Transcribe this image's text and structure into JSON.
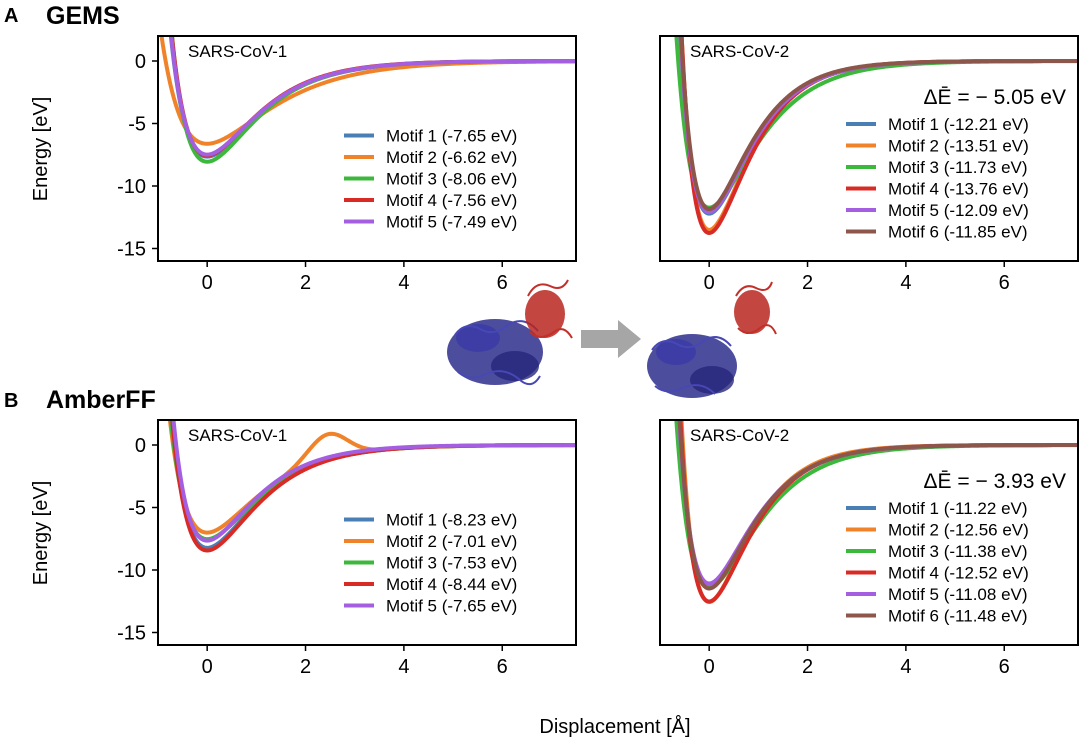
{
  "figure": {
    "xlabel_shared": "Displacement [Å]",
    "arrow_color": "#a6a6a6"
  },
  "rows": [
    {
      "letter": "A",
      "title": "GEMS",
      "ylabel": "Energy [eV]"
    },
    {
      "letter": "B",
      "title": "AmberFF",
      "ylabel": "Energy [eV]"
    }
  ],
  "colors": {
    "Motif 1": "#4a7fb5",
    "Motif 2": "#f0832a",
    "Motif 3": "#3cb83c",
    "Motif 4": "#d92b26",
    "Motif 5": "#a45fe0",
    "Motif 6": "#8c564b"
  },
  "chart_data": [
    {
      "id": "gems-cov1",
      "type": "line",
      "title": "SARS-CoV-1",
      "annotation": "",
      "xlim": [
        -1,
        7.5
      ],
      "ylim": [
        -16,
        2
      ],
      "xticks": [
        0,
        2,
        4,
        6
      ],
      "yticks": [
        0,
        -5,
        -10,
        -15
      ],
      "xlabel": "",
      "ylabel": "Energy [eV]",
      "legend": "lower-right",
      "series": [
        {
          "name": "Motif 1",
          "label": "Motif 1 (-7.65 eV)",
          "min": -7.65,
          "width": 1.02
        },
        {
          "name": "Motif 2",
          "label": "Motif 2 (-6.62 eV)",
          "min": -6.62,
          "width": 0.82
        },
        {
          "name": "Motif 3",
          "label": "Motif 3 (-8.06 eV)",
          "min": -8.06,
          "width": 1.05
        },
        {
          "name": "Motif 4",
          "label": "Motif 4 (-7.56 eV)",
          "min": -7.56,
          "width": 1.05
        },
        {
          "name": "Motif 5",
          "label": "Motif 5 (-7.49 eV)",
          "min": -7.49,
          "width": 1.03
        }
      ]
    },
    {
      "id": "gems-cov2",
      "type": "line",
      "title": "SARS-CoV-2",
      "annotation": "ΔĒ = − 5.05 eV",
      "xlim": [
        -1,
        7.5
      ],
      "ylim": [
        -16,
        2
      ],
      "xticks": [
        0,
        2,
        4,
        6
      ],
      "yticks": [],
      "xlabel": "",
      "ylabel": "",
      "legend": "lower-right",
      "series": [
        {
          "name": "Motif 1",
          "label": "Motif 1 (-12.21 eV)",
          "min": -12.21,
          "width": 1.25
        },
        {
          "name": "Motif 2",
          "label": "Motif 2 (-13.51 eV)",
          "min": -13.51,
          "width": 1.3
        },
        {
          "name": "Motif 3",
          "label": "Motif 3 (-11.73 eV)",
          "min": -11.73,
          "width": 1.1
        },
        {
          "name": "Motif 4",
          "label": "Motif 4 (-13.76 eV)",
          "min": -13.76,
          "width": 1.3
        },
        {
          "name": "Motif 5",
          "label": "Motif 5 (-12.09 eV)",
          "min": -12.09,
          "width": 1.25
        },
        {
          "name": "Motif 6",
          "label": "Motif 6 (-11.85 eV)",
          "min": -11.85,
          "width": 1.28
        }
      ]
    },
    {
      "id": "amber-cov1",
      "type": "line",
      "title": "SARS-CoV-1",
      "annotation": "",
      "xlim": [
        -1,
        7.5
      ],
      "ylim": [
        -16,
        2
      ],
      "xticks": [
        0,
        2,
        4,
        6
      ],
      "yticks": [
        0,
        -5,
        -10,
        -15
      ],
      "xlabel": "",
      "ylabel": "Energy [eV]",
      "legend": "lower-right",
      "series": [
        {
          "name": "Motif 1",
          "label": "Motif 1 (-8.23 eV)",
          "min": -8.23,
          "width": 1.05
        },
        {
          "name": "Motif 2",
          "label": "Motif 2 (-7.01 eV)",
          "min": -7.01,
          "width": 1.0,
          "bump": 0.75
        },
        {
          "name": "Motif 3",
          "label": "Motif 3 (-7.53 eV)",
          "min": -7.53,
          "width": 1.02
        },
        {
          "name": "Motif 4",
          "label": "Motif 4 (-8.44 eV)",
          "min": -8.44,
          "width": 1.05
        },
        {
          "name": "Motif 5",
          "label": "Motif 5 (-7.65 eV)",
          "min": -7.65,
          "width": 1.1
        }
      ]
    },
    {
      "id": "amber-cov2",
      "type": "line",
      "title": "SARS-CoV-2",
      "annotation": "ΔĒ = − 3.93 eV",
      "xlim": [
        -1,
        7.5
      ],
      "ylim": [
        -16,
        2
      ],
      "xticks": [
        0,
        2,
        4,
        6
      ],
      "yticks": [],
      "xlabel": "",
      "ylabel": "",
      "legend": "lower-right",
      "series": [
        {
          "name": "Motif 1",
          "label": "Motif 1 (-11.22 eV)",
          "min": -11.22,
          "width": 1.2
        },
        {
          "name": "Motif 2",
          "label": "Motif 2 (-12.56 eV)",
          "min": -12.56,
          "width": 1.3
        },
        {
          "name": "Motif 3",
          "label": "Motif 3 (-11.38 eV)",
          "min": -11.38,
          "width": 1.1
        },
        {
          "name": "Motif 4",
          "label": "Motif 4 (-12.52 eV)",
          "min": -12.52,
          "width": 1.25
        },
        {
          "name": "Motif 5",
          "label": "Motif 5 (-11.08 eV)",
          "min": -11.08,
          "width": 1.2
        },
        {
          "name": "Motif 6",
          "label": "Motif 6 (-11.48 eV)",
          "min": -11.48,
          "width": 1.22
        }
      ]
    }
  ]
}
